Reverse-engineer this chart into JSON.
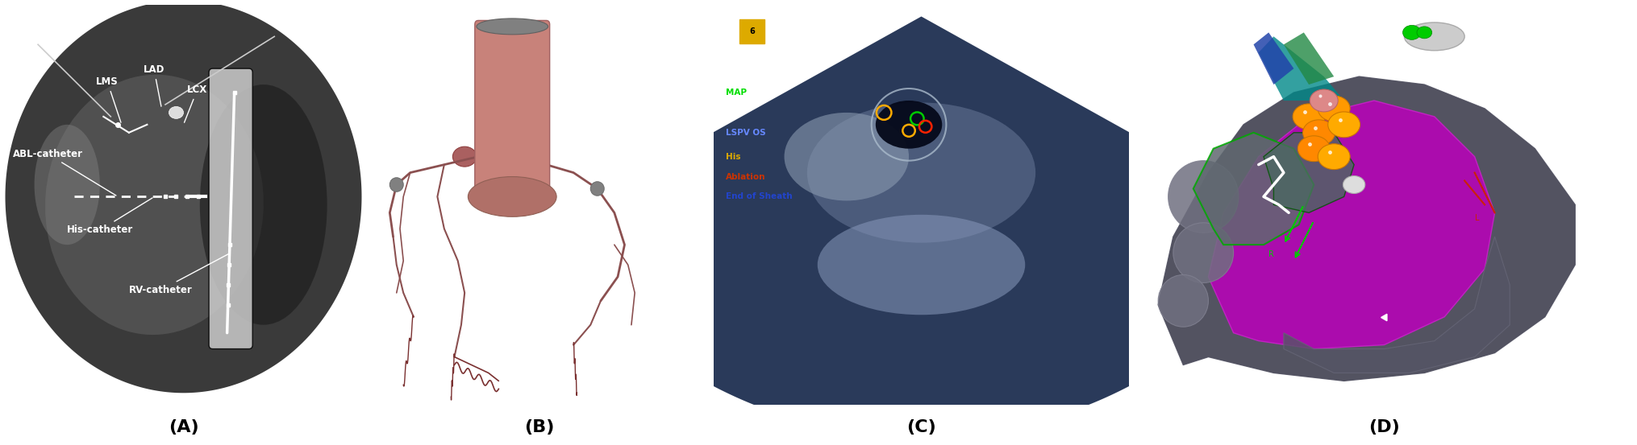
{
  "figure_width": 20.3,
  "figure_height": 5.53,
  "dpi": 100,
  "panel_labels": [
    "(A)",
    "(B)",
    "(C)",
    "(D)"
  ],
  "label_fontsize": 16,
  "label_fontweight": "bold",
  "panel_C_legend": [
    {
      "text": "MAP",
      "color": "#00dd00"
    },
    {
      "text": "LSPV OS",
      "color": "#6688ff"
    },
    {
      "text": "His",
      "color": "#ddaa00"
    },
    {
      "text": "Ablation",
      "color": "#cc3300"
    },
    {
      "text": "End of Sheath",
      "color": "#2244cc"
    }
  ],
  "panel_A_bg": "#ffffff",
  "panel_B_bg": "#ffffff",
  "panel_C_bg": "#000000",
  "panel_D_bg": "#000000"
}
